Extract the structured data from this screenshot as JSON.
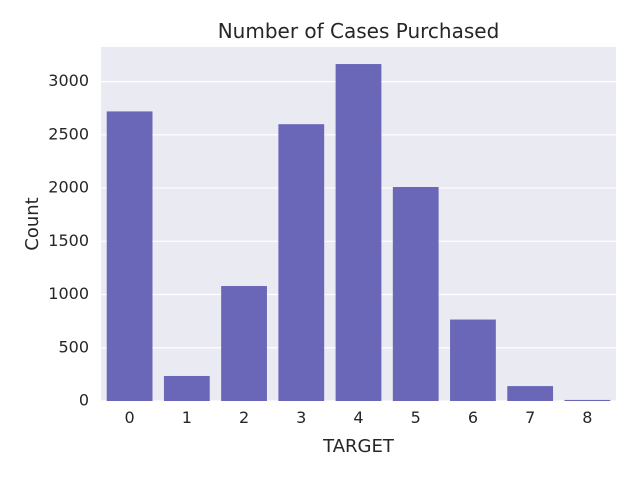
{
  "chart_data": {
    "type": "bar",
    "title": "Number of Cases Purchased",
    "xlabel": "TARGET",
    "ylabel": "Count",
    "categories": [
      "0",
      "1",
      "2",
      "3",
      "4",
      "5",
      "6",
      "7",
      "8"
    ],
    "values": [
      2720,
      235,
      1080,
      2600,
      3165,
      2010,
      765,
      140,
      10
    ],
    "ylim": [
      0,
      3325
    ],
    "yticks": [
      0,
      500,
      1000,
      1500,
      2000,
      2500,
      3000
    ],
    "ytick_labels": [
      "0",
      "500",
      "1000",
      "1500",
      "2000",
      "2500",
      "3000"
    ],
    "grid": true,
    "bar_color": "#6a67b8",
    "background_color": "#eaeaf2",
    "grid_color": "#ffffff"
  }
}
